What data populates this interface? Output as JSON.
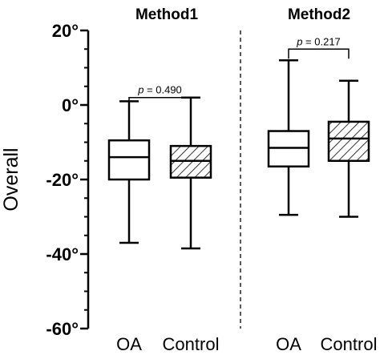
{
  "chart_data": {
    "type": "box",
    "ylabel": "Overall",
    "ylim": [
      -60,
      20
    ],
    "yticks": [
      {
        "value": 20,
        "label": "20°"
      },
      {
        "value": 0,
        "label": "0°"
      },
      {
        "value": -20,
        "label": "-20°"
      },
      {
        "value": -40,
        "label": "-40°"
      },
      {
        "value": -60,
        "label": "-60°"
      }
    ],
    "grid": false,
    "panels": [
      {
        "title": "Method1",
        "comparison": {
          "label": "p = 0.490",
          "p_prefix": "p",
          "p_value": "= 0.490",
          "y": 2
        },
        "boxes": [
          {
            "category": "OA",
            "min": -37,
            "q1": -20,
            "median": -14,
            "q3": -9.5,
            "max": 1,
            "pattern": "none"
          },
          {
            "category": "Control",
            "min": -38.5,
            "q1": -19.5,
            "median": -15,
            "q3": -11,
            "max": 2,
            "pattern": "hatched"
          }
        ]
      },
      {
        "title": "Method2",
        "comparison": {
          "label": "p = 0.217",
          "p_prefix": "p",
          "p_value": "= 0.217",
          "y": 15
        },
        "boxes": [
          {
            "category": "OA",
            "min": -29.5,
            "q1": -16.5,
            "median": -11.5,
            "q3": -7,
            "max": 12,
            "pattern": "none"
          },
          {
            "category": "Control",
            "min": -30,
            "q1": -15,
            "median": -9,
            "q3": -4.5,
            "max": 6.5,
            "pattern": "hatched"
          }
        ]
      }
    ]
  }
}
